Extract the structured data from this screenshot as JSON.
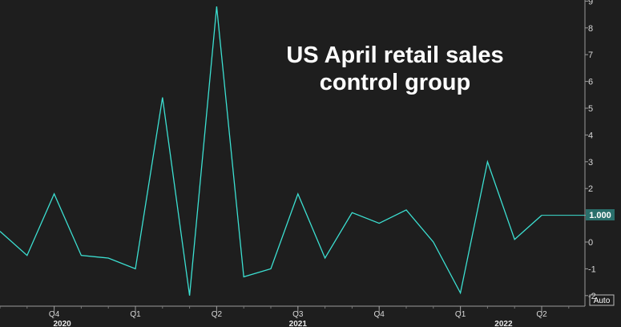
{
  "colors": {
    "background": "#1e1e1e",
    "line": "#3ce0d2",
    "grid": "#3a3a3a",
    "tick_text": "#d8d8d8",
    "title_text": "#ffffff",
    "last_value_box": "#2a6f6b"
  },
  "chart_data": {
    "type": "line",
    "title_lines": [
      "US April retail sales",
      "control group"
    ],
    "ylim": [
      -2.5,
      9
    ],
    "yticks": [
      9,
      8,
      7,
      6,
      5,
      4,
      3,
      2,
      1,
      0,
      -1,
      -2
    ],
    "grid": false,
    "y_axis_side": "right",
    "x_labels": [
      "Q4",
      "Q1",
      "Q2",
      "Q3",
      "Q4",
      "Q1",
      "Q2"
    ],
    "year_labels": [
      "2020",
      "2021",
      "2022"
    ],
    "last_value_label": "1.000",
    "auto_label": "Auto",
    "series": [
      {
        "x": [
          "2020-08",
          "2020-09",
          "2020-10",
          "2020-11",
          "2020-12",
          "2021-01",
          "2021-02",
          "2021-03",
          "2021-04",
          "2021-05",
          "2021-06",
          "2021-07",
          "2021-08",
          "2021-09",
          "2021-10",
          "2021-11",
          "2021-12",
          "2022-01",
          "2022-02",
          "2022-03",
          "2022-04"
        ],
        "values": [
          0.4,
          -0.5,
          1.8,
          -0.5,
          -0.6,
          -1.0,
          5.4,
          -2.0,
          8.8,
          -1.3,
          -1.0,
          1.8,
          -0.6,
          1.1,
          0.7,
          1.2,
          0.0,
          -1.9,
          3.0,
          0.1,
          1.0
        ]
      }
    ]
  }
}
